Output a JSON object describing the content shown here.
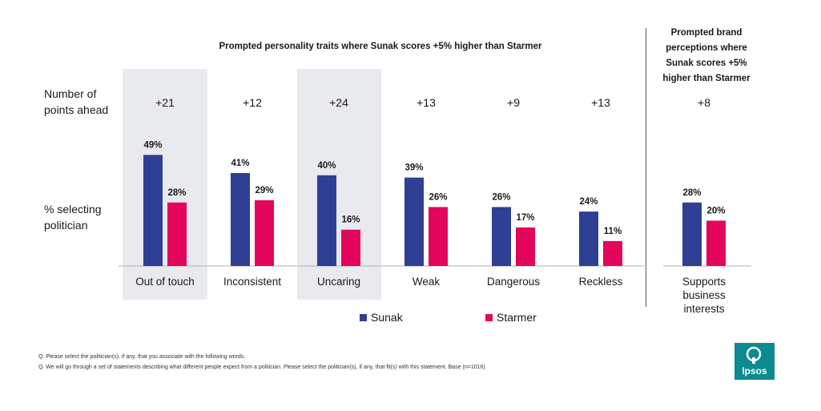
{
  "titles": {
    "main": "Prompted personality traits where Sunak scores +5% higher than Starmer",
    "side": [
      "Prompted brand",
      "perceptions where",
      "Sunak scores +5%",
      "higher than Starmer"
    ]
  },
  "row_labels": {
    "points_ahead": [
      "Number of",
      "points ahead"
    ],
    "selecting": [
      "% selecting",
      "politician"
    ]
  },
  "colors": {
    "sunak": "#2e3f94",
    "starmer": "#e3065c",
    "shade": "#e8eaee",
    "axis": "#b0b0b0"
  },
  "chart_data": {
    "type": "bar",
    "title": "Prompted personality traits where Sunak scores +5% higher than Starmer",
    "categories": [
      "Out of touch",
      "Inconsistent",
      "Uncaring",
      "Weak",
      "Dangerous",
      "Reckless",
      "Supports business interests"
    ],
    "category_lines": [
      [
        "Out of touch"
      ],
      [
        "Inconsistent"
      ],
      [
        "Uncaring"
      ],
      [
        "Weak"
      ],
      [
        "Dangerous"
      ],
      [
        "Reckless"
      ],
      [
        "Supports",
        "business",
        "interests"
      ]
    ],
    "points_ahead": [
      "+21",
      "+12",
      "+24",
      "+13",
      "+9",
      "+13",
      "+8"
    ],
    "highlighted": [
      true,
      false,
      true,
      false,
      false,
      false,
      false
    ],
    "series": [
      {
        "name": "Sunak",
        "values": [
          49,
          41,
          40,
          39,
          26,
          24,
          28
        ],
        "labels": [
          "49%",
          "41%",
          "40%",
          "39%",
          "26%",
          "24%",
          "28%"
        ]
      },
      {
        "name": "Starmer",
        "values": [
          28,
          29,
          16,
          26,
          17,
          11,
          20
        ],
        "labels": [
          "28%",
          "29%",
          "16%",
          "26%",
          "17%",
          "11%",
          "20%"
        ]
      }
    ],
    "xlabel": "",
    "ylabel": "% selecting politician",
    "ylim": [
      0,
      60
    ],
    "legend_position": "bottom"
  },
  "legend": {
    "sunak": "Sunak",
    "starmer": "Starmer"
  },
  "footnotes": [
    "Q. Please select the politician(s), if any, that you associate with the following words.",
    "Q. We will go through a set of statements describing what different people expect from a politician. Please select the politician(s), if any, that fit(s) with this statement.  Base (n=1016)"
  ],
  "logo": {
    "text": "Ipsos"
  }
}
